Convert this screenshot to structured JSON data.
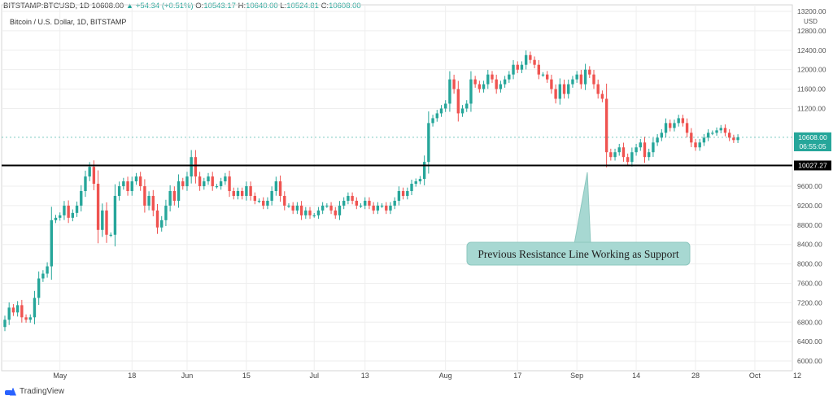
{
  "header": {
    "symbol": "BITSTAMP:BTCUSD, 1D",
    "last": "10608.00",
    "change": "▲ +54.34 (+0.51%)",
    "o_label": "O:",
    "o_value": "10543.17",
    "h_label": "H:",
    "h_value": "10640.00",
    "l_label": "L:",
    "l_value": "10524.81",
    "c_label": "C:",
    "c_value": "10608.00"
  },
  "subtitle": "Bitcoin / U.S. Dollar, 1D, BITSTAMP",
  "brand": "TradingView",
  "colors": {
    "up": "#26a69a",
    "down": "#ef5350",
    "line": "#000000",
    "callout": "#a7d8d2"
  },
  "chart_data": {
    "type": "candlestick",
    "ylim": [
      5800,
      13200
    ],
    "y_unit": "USD",
    "y_ticks": [
      6000,
      6400,
      6800,
      7200,
      7600,
      8000,
      8400,
      8800,
      9200,
      9600,
      11200,
      11600,
      12000,
      12400,
      12800,
      13200
    ],
    "x_range_days": [
      0,
      163
    ],
    "x_ticks": [
      {
        "day": 13,
        "label": "May"
      },
      {
        "day": 30,
        "label": "18"
      },
      {
        "day": 43,
        "label": "Jun"
      },
      {
        "day": 57,
        "label": "15"
      },
      {
        "day": 73,
        "label": "Jul"
      },
      {
        "day": 85,
        "label": "13"
      },
      {
        "day": 104,
        "label": "Aug"
      },
      {
        "day": 121,
        "label": "17"
      },
      {
        "day": 135,
        "label": "Sep"
      },
      {
        "day": 149,
        "label": "14"
      },
      {
        "day": 163,
        "label": "28"
      },
      {
        "day": 177,
        "label": "Oct"
      },
      {
        "day": 187,
        "label": "12"
      }
    ],
    "price_labels": [
      {
        "value": 10608,
        "text": "10608.00"
      },
      {
        "value": 10420,
        "text": "06:55:05"
      },
      {
        "value": 10027.27,
        "text": "10027.27",
        "style": "line"
      }
    ],
    "support_line": 10027.27,
    "annotation": "Previous Resistance Line Working as Support",
    "closes": [
      6850,
      7100,
      7000,
      7150,
      6900,
      6850,
      6900,
      7300,
      7700,
      7800,
      7950,
      8900,
      8950,
      9000,
      9200,
      8950,
      9050,
      9200,
      9500,
      9800,
      10000,
      9650,
      8700,
      9100,
      8600,
      8600,
      9400,
      9600,
      9700,
      9500,
      9700,
      9800,
      9600,
      9200,
      9400,
      9100,
      8750,
      8900,
      9200,
      9500,
      9300,
      9700,
      9600,
      9800,
      10200,
      9800,
      9600,
      9700,
      9800,
      9600,
      9600,
      9700,
      9800,
      9500,
      9400,
      9500,
      9400,
      9600,
      9400,
      9300,
      9300,
      9200,
      9300,
      9500,
      9700,
      9400,
      9200,
      9200,
      9100,
      9200,
      9000,
      9100,
      9000,
      9000,
      9100,
      9200,
      9200,
      9100,
      9000,
      9200,
      9300,
      9400,
      9300,
      9200,
      9200,
      9300,
      9200,
      9100,
      9200,
      9200,
      9100,
      9200,
      9300,
      9500,
      9400,
      9500,
      9650,
      9700,
      9750,
      10100,
      10900,
      11000,
      11100,
      11200,
      11300,
      11800,
      11600,
      11100,
      11200,
      11300,
      11800,
      11700,
      11600,
      11700,
      11900,
      11800,
      11600,
      11700,
      11800,
      11900,
      12100,
      12000,
      12100,
      12300,
      12200,
      12100,
      11900,
      11900,
      11800,
      11600,
      11400,
      11700,
      11500,
      11700,
      11800,
      11900,
      11700,
      12000,
      11900,
      11700,
      11500,
      11400,
      10300,
      10200,
      10300,
      10400,
      10200,
      10100,
      10300,
      10400,
      10500,
      10200,
      10300,
      10500,
      10600,
      10700,
      10900,
      10800,
      10900,
      11000,
      10900,
      10700,
      10500,
      10400,
      10500,
      10600,
      10700,
      10700,
      10750,
      10800,
      10700,
      10600,
      10550,
      10608
    ]
  }
}
